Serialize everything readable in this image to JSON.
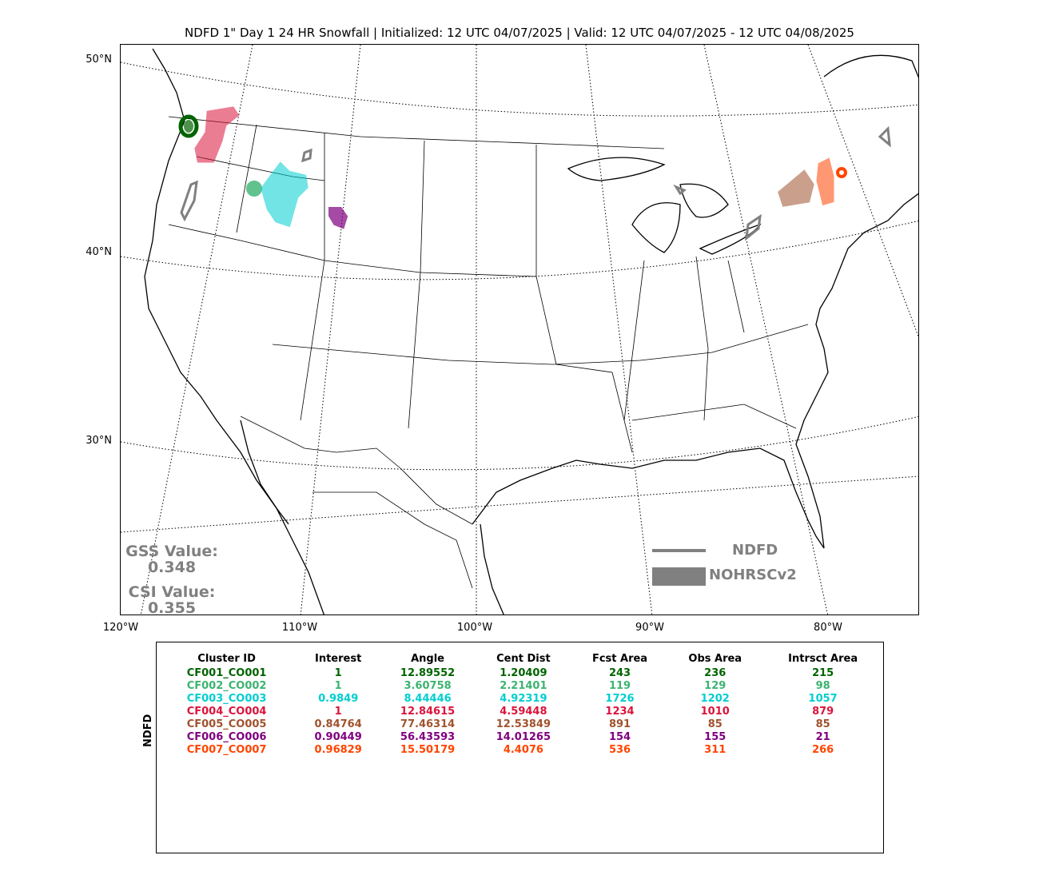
{
  "title": "NDFD 1\" Day 1 24 HR Snowfall | Initialized: 12 UTC 04/07/2025 | Valid: 12 UTC 04/07/2025 - 12 UTC 04/08/2025",
  "lat_labels": [
    "50°N",
    "40°N",
    "30°N"
  ],
  "lon_labels": [
    "120°W",
    "110°W",
    "100°W",
    "90°W",
    "80°W"
  ],
  "scores": {
    "gss_label": "GSS Value:",
    "gss_value": "0.348",
    "csi_label": "CSI Value:",
    "csi_value": "0.355"
  },
  "legend": {
    "line_label": "NDFD",
    "fill_label": "NOHRSCv2",
    "color": "#808080"
  },
  "table": {
    "side_label": "NDFD",
    "headers": [
      "Cluster ID",
      "Interest",
      "Angle",
      "Cent Dist",
      "Fcst Area",
      "Obs Area",
      "Intrsct Area"
    ],
    "rows": [
      {
        "color": "#006400",
        "cells": [
          "CF001_CO001",
          "1",
          "12.89552",
          "1.20409",
          "243",
          "236",
          "215"
        ]
      },
      {
        "color": "#3CB371",
        "cells": [
          "CF002_CO002",
          "1",
          "3.60758",
          "2.21401",
          "119",
          "129",
          "98"
        ]
      },
      {
        "color": "#00CED1",
        "cells": [
          "CF003_CO003",
          "0.9849",
          "8.44446",
          "4.92319",
          "1726",
          "1202",
          "1057"
        ]
      },
      {
        "color": "#DC143C",
        "cells": [
          "CF004_CO004",
          "1",
          "12.84615",
          "4.59448",
          "1234",
          "1010",
          "879"
        ]
      },
      {
        "color": "#A0522D",
        "cells": [
          "CF005_CO005",
          "0.84764",
          "77.46314",
          "12.53849",
          "891",
          "85",
          "85"
        ]
      },
      {
        "color": "#800080",
        "cells": [
          "CF006_CO006",
          "0.90449",
          "56.43593",
          "14.01265",
          "154",
          "155",
          "21"
        ]
      },
      {
        "color": "#FF4500",
        "cells": [
          "CF007_CO007",
          "0.96829",
          "15.50179",
          "4.4076",
          "536",
          "311",
          "266"
        ]
      }
    ]
  },
  "clusters": {
    "c1": "#006400",
    "c2": "#3CB371",
    "c3": "#00CED1",
    "c4": "#DC143C",
    "c5": "#A0522D",
    "c6": "#800080",
    "c7": "#FF4500"
  }
}
